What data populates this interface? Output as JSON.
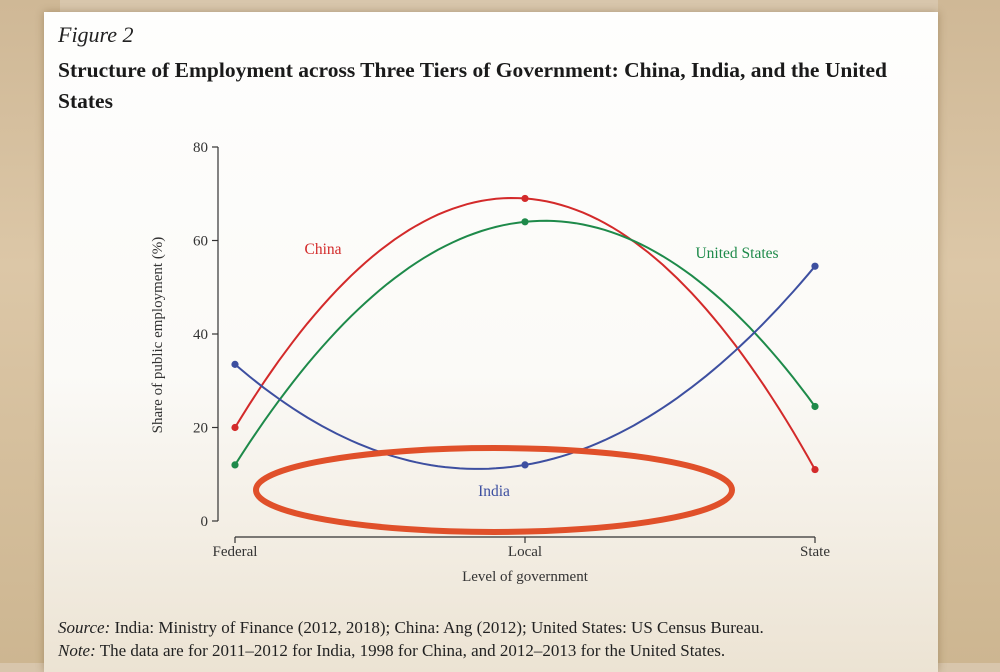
{
  "figure": {
    "label": "Figure 2",
    "title": "Structure of Employment across Three Tiers of Government: China, India, and the United States"
  },
  "chart_data": {
    "type": "line",
    "categories": [
      "Federal",
      "Local",
      "State"
    ],
    "xlabel": "Level of government",
    "ylabel": "Share of public employment (%)",
    "ylim": [
      0,
      80
    ],
    "yticks": [
      0,
      20,
      40,
      60,
      80
    ],
    "grid": false,
    "series": [
      {
        "name": "China",
        "color": "#d32a2a",
        "values": [
          20,
          69,
          11
        ]
      },
      {
        "name": "United States",
        "color": "#1e8a4a",
        "values": [
          12,
          64,
          24.5
        ]
      },
      {
        "name": "India",
        "color": "#3d4fa0",
        "values": [
          33.5,
          12,
          54.5
        ]
      }
    ],
    "annotation_color": "#e0502a"
  },
  "source": {
    "source_label": "Source:",
    "source_text": "India: Ministry of Finance (2012, 2018); China: Ang (2012); United States: US Census Bureau.",
    "note_label": "Note:",
    "note_text": "The data are for 2011–2012 for India, 1998 for China, and 2012–2013 for the United States."
  }
}
